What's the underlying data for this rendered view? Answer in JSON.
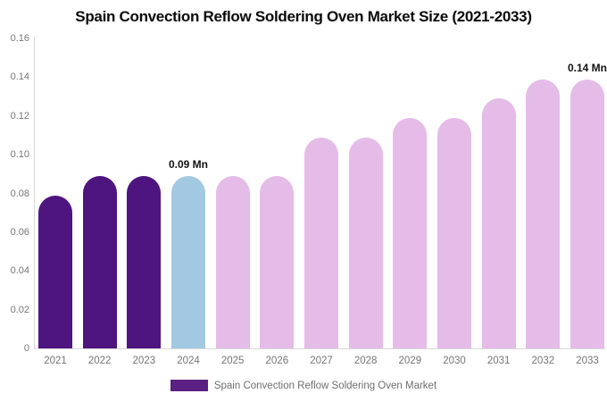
{
  "title": "Spain Convection Reflow Soldering Oven Market Size (2021-2033)",
  "chart_data": {
    "type": "bar",
    "title": "Spain Convection Reflow Soldering Oven Market Size (2021-2033)",
    "categories": [
      "2021",
      "2022",
      "2023",
      "2024",
      "2025",
      "2026",
      "2027",
      "2028",
      "2029",
      "2030",
      "2031",
      "2032",
      "2033"
    ],
    "values": [
      0.079,
      0.089,
      0.089,
      0.089,
      0.089,
      0.089,
      0.109,
      0.109,
      0.119,
      0.119,
      0.129,
      0.139,
      0.139
    ],
    "unit": "Mn",
    "bar_roles": [
      "historical",
      "historical",
      "historical",
      "current",
      "forecast",
      "forecast",
      "forecast",
      "forecast",
      "forecast",
      "forecast",
      "forecast",
      "forecast",
      "forecast"
    ],
    "colors": {
      "historical": "#4E1580",
      "current": "#A2C9E1",
      "forecast": "#E5BCE8"
    },
    "annotations": [
      {
        "index": 3,
        "text": "0.09 Mn"
      },
      {
        "index": 12,
        "text": "0.14 Mn"
      }
    ],
    "xlabel": "",
    "ylabel": "",
    "ylim": [
      0,
      0.16
    ],
    "yticks": [
      {
        "value": 0.16,
        "label": "0.16"
      },
      {
        "value": 0.14,
        "label": "0.14"
      },
      {
        "value": 0.12,
        "label": "0.12"
      },
      {
        "value": 0.1,
        "label": "0.10"
      },
      {
        "value": 0.08,
        "label": "0.08"
      },
      {
        "value": 0.06,
        "label": "0.06"
      },
      {
        "value": 0.04,
        "label": "0.04"
      },
      {
        "value": 0.02,
        "label": "0.02"
      },
      {
        "value": 0,
        "label": "0"
      }
    ],
    "grid": false,
    "legend": {
      "position": "bottom",
      "items": [
        {
          "label": "Spain Convection Reflow Soldering Oven Market",
          "color": "#5A2082"
        }
      ]
    },
    "axis_color": "#D9D9D9",
    "tick_text_color": "#757575"
  }
}
